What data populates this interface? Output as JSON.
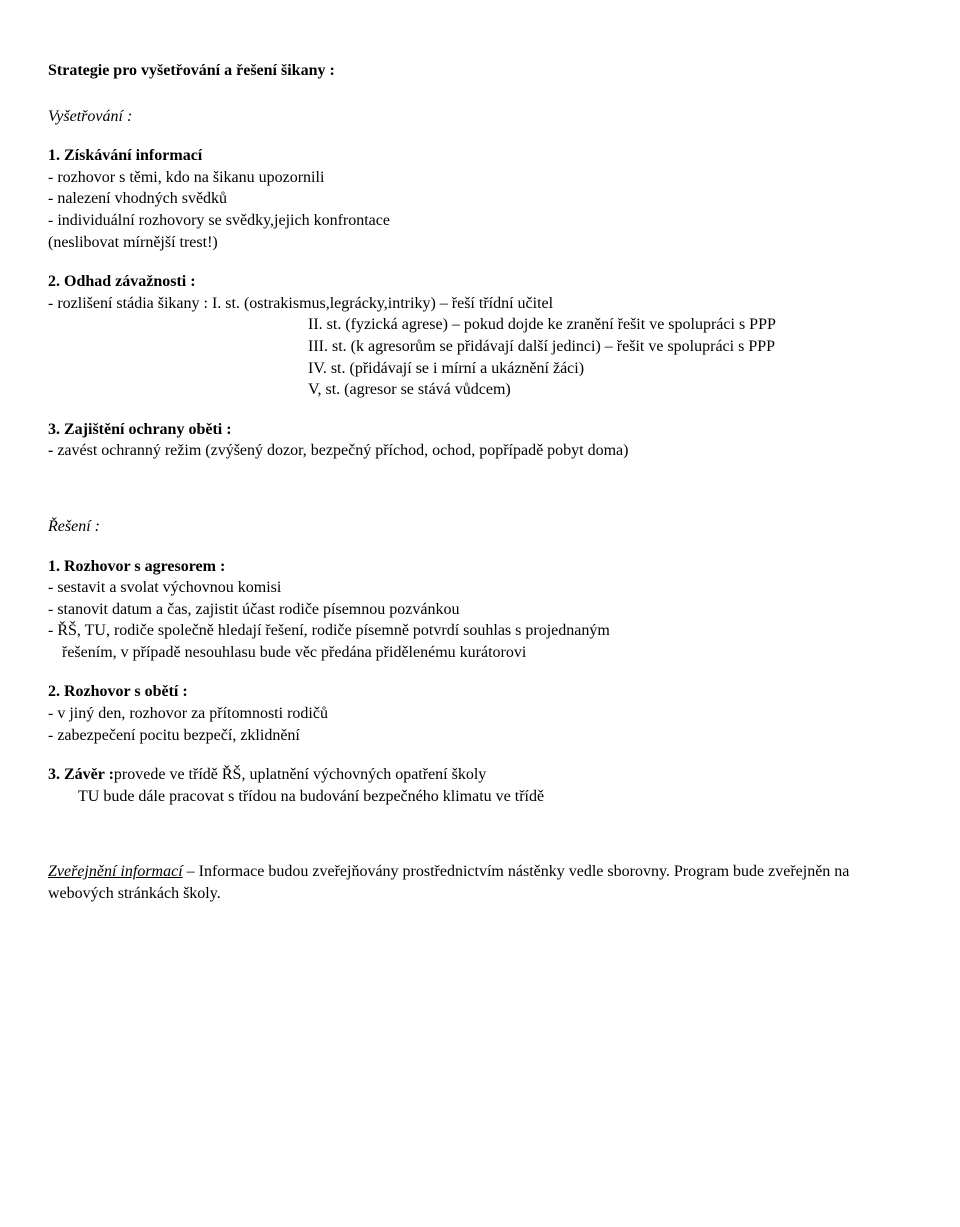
{
  "title": "Strategie pro vyšetřování a řešení šikany :",
  "investigation": {
    "heading": "Vyšetřování :",
    "s1": {
      "num_head": "1. Získávání informací",
      "b1": "- rozhovor s těmi, kdo na šikanu upozornili",
      "b2": "- nalezení vhodných svědků",
      "b3": "- individuální rozhovory se svědky,jejich konfrontace",
      "b4": "  (neslibovat mírnější trest!)"
    },
    "s2": {
      "num_head": "2. Odhad závažnosti :",
      "b1": "- rozlišení stádia šikany : I. st. (ostrakismus,legrácky,intriky) – řeší třídní učitel",
      "b2": "II. st. (fyzická agrese) – pokud dojde ke zranění řešit ve spolupráci s PPP",
      "b3": "III. st. (k agresorům se přidávají další jedinci) – řešit ve spolupráci s PPP",
      "b4": "IV. st. (přidávají se i mírní a ukáznění žáci)",
      "b5": "V, st. (agresor se stává vůdcem)"
    },
    "s3": {
      "num_head": "3. Zajištění ochrany oběti :",
      "b1_pre": "- ",
      "b1": "zavést ochranný režim (zvýšený dozor, bezpečný příchod, ochod, popřípadě pobyt doma)"
    }
  },
  "solution": {
    "heading": "Řešení :",
    "s1": {
      "num_head": "1. Rozhovor s agresorem :",
      "b1": " - sestavit a svolat výchovnou komisi",
      "b2": "- stanovit datum a čas, zajistit účast rodiče písemnou pozvánkou",
      "b3": "- ŘŠ, TU, rodiče společně hledají řešení, rodiče písemně potvrdí souhlas s projednaným",
      "b3b": "řešením, v případě nesouhlasu bude věc předána přidělenému kurátorovi"
    },
    "s2": {
      "num_head": "2. Rozhovor s obětí :",
      "b1": "- v jiný den, rozhovor za přítomnosti rodičů",
      "b2": "- zabezpečení pocitu bezpečí, zklidnění"
    },
    "s3": {
      "num_head": "3. Závěr :",
      "rest1": "provede ve třídě ŘŠ, uplatnění výchovných opatření školy",
      "rest2": "TU bude dále pracovat s třídou na budování bezpečného klimatu ve třídě"
    }
  },
  "publication": {
    "label": "Zveřejnění informací",
    "text1": " – Informace budou zveřejňovány prostřednictvím nástěnky  vedle sborovny. Program bude zveřejněn na webových stránkách školy."
  }
}
